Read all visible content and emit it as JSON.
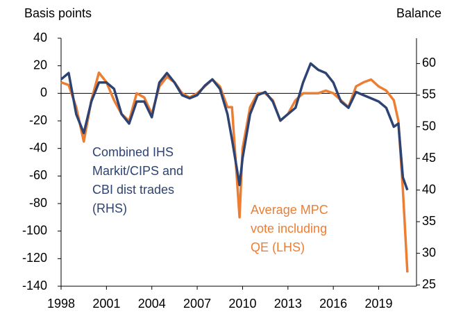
{
  "chart_data": {
    "type": "line",
    "ylabel": "Basis points",
    "y2label": "Balance",
    "x": [
      1998.0,
      1998.5,
      1999.0,
      1999.5,
      2000.0,
      2000.5,
      2001.0,
      2001.5,
      2002.0,
      2002.5,
      2003.0,
      2003.5,
      2004.0,
      2004.5,
      2005.0,
      2005.5,
      2006.0,
      2006.5,
      2007.0,
      2007.5,
      2008.0,
      2008.5,
      2009.0,
      2009.3,
      2009.8,
      2010.0,
      2010.5,
      2011.0,
      2011.5,
      2012.0,
      2012.5,
      2013.0,
      2013.5,
      2014.0,
      2014.5,
      2015.0,
      2015.5,
      2016.0,
      2016.5,
      2017.0,
      2017.5,
      2018.0,
      2018.5,
      2019.0,
      2019.5,
      2020.0,
      2020.3,
      2020.6,
      2020.9
    ],
    "series": [
      {
        "color": "#ed7d31",
        "axis": "y",
        "values": [
          8,
          6,
          -10,
          -35,
          -5,
          15,
          8,
          -5,
          -15,
          -20,
          0,
          -3,
          -15,
          5,
          12,
          8,
          0,
          -3,
          0,
          5,
          10,
          5,
          -10,
          -10,
          -90,
          -40,
          -10,
          0,
          0,
          -5,
          -20,
          -15,
          -5,
          0,
          0,
          0,
          2,
          0,
          -5,
          -10,
          5,
          8,
          10,
          5,
          2,
          -5,
          -20,
          -70,
          -130
        ]
      },
      {
        "color": "#2d4373",
        "axis": "y2",
        "values": [
          57.5,
          58.5,
          52,
          49,
          54,
          57,
          57,
          56,
          52,
          50.5,
          54,
          54,
          51.5,
          57,
          58.5,
          57,
          55,
          54.5,
          55,
          56.5,
          57.5,
          56,
          52,
          48,
          40.8,
          45,
          52,
          55,
          55.5,
          54,
          51,
          52,
          53,
          57,
          60,
          59,
          58.5,
          57,
          54,
          53,
          55.5,
          55,
          54.5,
          54,
          53,
          50,
          50.5,
          42,
          40
        ]
      }
    ],
    "annotations": [
      {
        "color": "#2d4373",
        "lines": [
          "Combined IHS",
          "Markit/CIPS and",
          "CBI dist trades",
          "(RHS)"
        ]
      },
      {
        "color": "#ed7d31",
        "lines": [
          "Average MPC",
          "vote including",
          "QE (LHS)"
        ]
      }
    ],
    "xlim": [
      1998,
      2021.5
    ],
    "xticks": [
      1998,
      2001,
      2004,
      2007,
      2010,
      2013,
      2016,
      2019
    ],
    "ylim": [
      -140,
      40
    ],
    "yticks": [
      -140,
      -120,
      -100,
      -80,
      -60,
      -40,
      -20,
      0,
      20,
      40
    ],
    "y2lim": [
      24.8,
      64
    ],
    "y2ticks": [
      25,
      30,
      35,
      40,
      45,
      50,
      55,
      60
    ]
  }
}
